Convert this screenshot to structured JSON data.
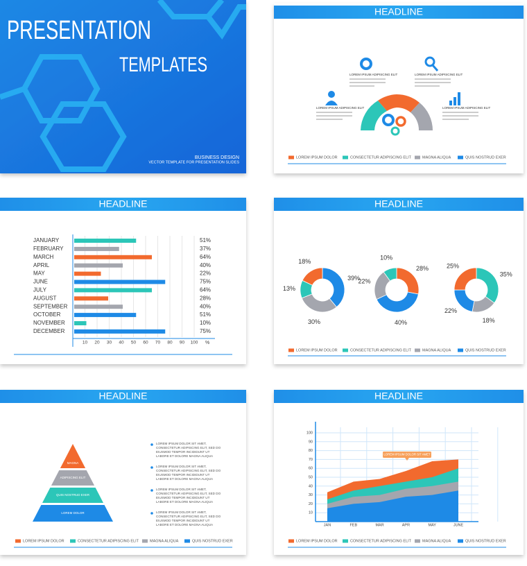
{
  "cover": {
    "title": "PRESENTATION",
    "subtitle": "TEMPLATES",
    "tagline": "BUSINESS DESIGN",
    "description": "VECTOR TEMPLATE FOR PRESENTATION SLIDES"
  },
  "headline": "HEADLINE",
  "legend": [
    {
      "name": "LOREM IPSUM DOLOR",
      "color": "#f26a2e"
    },
    {
      "name": "CONSECTETUR ADIPISCING ELIT",
      "color": "#2cc6b8"
    },
    {
      "name": "MAGNA ALIQUA",
      "color": "#a4a6ae"
    },
    {
      "name": "QUIS NOSTRUD EXER",
      "color": "#1e8ae6"
    }
  ],
  "infographic": {
    "labels": [
      "LOREM IPSUM ADIPISCING ELIT",
      "LOREM IPSUM ADIPISCING ELIT",
      "LOREM IPSUM ADIPISCING ELIT",
      "LOREM IPSUM ADIPISCING ELIT"
    ]
  },
  "bar_chart": {
    "type": "bar",
    "categories": [
      "JANUARY",
      "FEBRUARY",
      "MARCH",
      "APRIL",
      "MAY",
      "JUNE",
      "JULY",
      "AUGUST",
      "SEPTEMBER",
      "OCTOBER",
      "NOVEMBER",
      "DECEMBER"
    ],
    "values": [
      51,
      37,
      64,
      40,
      22,
      75,
      64,
      28,
      40,
      51,
      10,
      75
    ],
    "value_labels": [
      "51%",
      "37%",
      "64%",
      "40%",
      "22%",
      "75%",
      "64%",
      "28%",
      "40%",
      "51%",
      "10%",
      "75%"
    ],
    "colors": [
      "#2cc6b8",
      "#a4a6ae",
      "#f26a2e",
      "#a4a6ae",
      "#f26a2e",
      "#1e8ae6",
      "#2cc6b8",
      "#f26a2e",
      "#a4a6ae",
      "#1e8ae6",
      "#2cc6b8",
      "#1e8ae6"
    ],
    "xlim": [
      0,
      100
    ],
    "xticks": [
      10,
      20,
      30,
      40,
      50,
      60,
      70,
      80,
      90,
      100
    ],
    "x_unit": "%"
  },
  "donuts": [
    {
      "type": "pie",
      "values": [
        39,
        30,
        13,
        18
      ],
      "value_labels": [
        "39%",
        "30%",
        "13%",
        "18%"
      ],
      "colors": [
        "#1e8ae6",
        "#a4a6ae",
        "#2cc6b8",
        "#f26a2e"
      ]
    },
    {
      "type": "pie",
      "values": [
        28,
        40,
        22,
        10
      ],
      "value_labels": [
        "28%",
        "40%",
        "22%",
        "10%"
      ],
      "colors": [
        "#f26a2e",
        "#1e8ae6",
        "#a4a6ae",
        "#2cc6b8"
      ]
    },
    {
      "type": "pie",
      "values": [
        35,
        18,
        22,
        25
      ],
      "value_labels": [
        "35%",
        "18%",
        "22%",
        "25%"
      ],
      "colors": [
        "#2cc6b8",
        "#a4a6ae",
        "#1e8ae6",
        "#f26a2e"
      ]
    }
  ],
  "pyramid": {
    "levels": [
      "MAGNA",
      "ADIPISCING ELIT",
      "QUIS NOSTRUD EXER",
      "LOREM DOLOR"
    ],
    "colors": [
      "#f26a2e",
      "#a4a6ae",
      "#2cc6b8",
      "#1e8ae6"
    ],
    "paragraphs": [
      "LOREM IPSUM DOLOR SIT AMET, CONSECTETUR ADIPISCING ELIT, SED DO EIUSMOD TEMPOR INCIDIDUNT UT LABORE ET DOLORE MAGNA ALIQUA",
      "LOREM IPSUM DOLOR SIT AMET, CONSECTETUR ADIPISCING ELIT, SED DO EIUSMOD TEMPOR INCIDIDUNT UT LABORE ET DOLORE MAGNA ALIQUA",
      "LOREM IPSUM DOLOR SIT AMET, CONSECTETUR ADIPISCING ELIT, SED DO EIUSMOD TEMPOR INCIDIDUNT UT LABORE ET DOLORE MAGNA ALIQUA",
      "LOREM IPSUM DOLOR SIT AMET, CONSECTETUR ADIPISCING ELIT, SED DO EIUSMOD TEMPOR INCIDIDUNT UT LABORE ET DOLORE MAGNA ALIQUA"
    ]
  },
  "area_chart": {
    "type": "area",
    "categories": [
      "JAN",
      "FEB",
      "MAR",
      "APR",
      "MAY",
      "JUNE"
    ],
    "series": [
      {
        "name": "LOREM IPSUM DOLOR",
        "color": "#f26a2e",
        "values": [
          33,
          45,
          48,
          57,
          68,
          70
        ]
      },
      {
        "name": "CONSECTETUR ADIPISCING ELIT",
        "color": "#2cc6b8",
        "values": [
          25,
          35,
          40,
          45,
          50,
          60
        ]
      },
      {
        "name": "MAGNA ALIQUA",
        "color": "#a4a6ae",
        "values": [
          20,
          28,
          30,
          37,
          40,
          45
        ]
      },
      {
        "name": "QUIS NOSTRUD EXER",
        "color": "#1e8ae6",
        "values": [
          15,
          20,
          22,
          28,
          30,
          35
        ]
      }
    ],
    "ylim": [
      0,
      100
    ],
    "yticks": [
      10,
      20,
      30,
      40,
      50,
      60,
      70,
      80,
      90,
      100
    ],
    "grid": true,
    "callout": "LOREM IPSUM DOLOR SIT AMET"
  }
}
